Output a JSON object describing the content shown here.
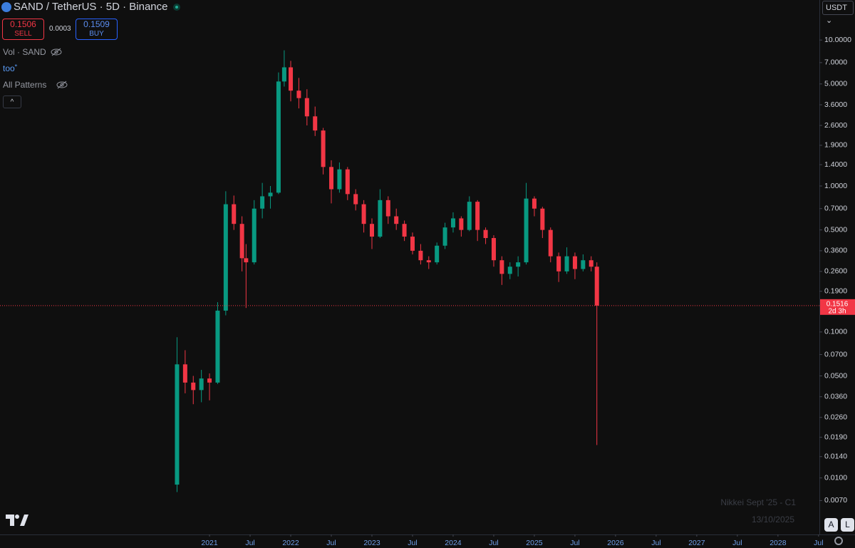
{
  "header": {
    "symbol": "SAND / TetherUS · 5D · Binance",
    "sell_price": 0.1506,
    "sell_label": "SELL",
    "spread": 0.0003,
    "buy_price": 0.1509,
    "buy_label": "BUY"
  },
  "indicators": [
    "Vol · SAND",
    "too˚",
    "All Patterns"
  ],
  "currency": "USDT",
  "countdown": "2d 3h",
  "watermark": {
    "line1": "Nikkei Sept '25 - C1",
    "line2": "13/10/2025"
  },
  "buttons": [
    "A",
    "L"
  ],
  "chart_data": {
    "type": "candlestick",
    "y_scale": "log",
    "up_color": "#089981",
    "down_color": "#f23645",
    "price_line_color": "#f23645",
    "x": [
      2020.6,
      2020.7,
      2020.8,
      2020.9,
      2021.0,
      2021.1,
      2021.2,
      2021.3,
      2021.4,
      2021.45,
      2021.55,
      2021.65,
      2021.75,
      2021.85,
      2021.92,
      2022.0,
      2022.1,
      2022.2,
      2022.3,
      2022.4,
      2022.5,
      2022.6,
      2022.7,
      2022.8,
      2022.9,
      2023.0,
      2023.1,
      2023.2,
      2023.3,
      2023.4,
      2023.5,
      2023.6,
      2023.7,
      2023.8,
      2023.9,
      2024.0,
      2024.1,
      2024.2,
      2024.3,
      2024.4,
      2024.5,
      2024.6,
      2024.7,
      2024.8,
      2024.9,
      2025.0,
      2025.1,
      2025.2,
      2025.3,
      2025.4,
      2025.5,
      2025.6,
      2025.7,
      2025.77
    ],
    "open": [
      0.009,
      0.06,
      0.045,
      0.04,
      0.048,
      0.045,
      0.14,
      0.75,
      0.55,
      0.32,
      0.3,
      0.7,
      0.85,
      0.9,
      5.2,
      6.5,
      4.5,
      4.0,
      3.0,
      2.4,
      1.35,
      0.95,
      1.3,
      0.88,
      0.75,
      0.55,
      0.45,
      0.8,
      0.62,
      0.55,
      0.45,
      0.36,
      0.31,
      0.3,
      0.39,
      0.52,
      0.6,
      0.5,
      0.78,
      0.5,
      0.44,
      0.31,
      0.25,
      0.28,
      0.3,
      0.82,
      0.7,
      0.5,
      0.33,
      0.26,
      0.33,
      0.27,
      0.31,
      0.28
    ],
    "high": [
      0.092,
      0.075,
      0.05,
      0.055,
      0.052,
      0.16,
      0.92,
      0.86,
      0.62,
      0.4,
      0.8,
      1.05,
      1.0,
      6.0,
      8.5,
      7.2,
      5.5,
      4.6,
      3.5,
      2.5,
      1.5,
      1.45,
      1.35,
      0.95,
      0.8,
      0.6,
      0.95,
      0.85,
      0.7,
      0.58,
      0.48,
      0.4,
      0.33,
      0.41,
      0.56,
      0.66,
      0.62,
      0.85,
      0.8,
      0.52,
      0.46,
      0.33,
      0.3,
      0.33,
      1.05,
      0.85,
      0.72,
      0.52,
      0.35,
      0.38,
      0.35,
      0.34,
      0.33,
      0.3
    ],
    "low": [
      0.008,
      0.038,
      0.032,
      0.033,
      0.034,
      0.044,
      0.13,
      0.5,
      0.26,
      0.146,
      0.29,
      0.6,
      0.7,
      0.88,
      4.8,
      3.8,
      3.4,
      2.6,
      2.2,
      1.2,
      0.76,
      0.9,
      0.8,
      0.68,
      0.48,
      0.37,
      0.44,
      0.55,
      0.5,
      0.42,
      0.34,
      0.29,
      0.27,
      0.29,
      0.37,
      0.48,
      0.45,
      0.49,
      0.42,
      0.4,
      0.28,
      0.21,
      0.23,
      0.24,
      0.29,
      0.62,
      0.44,
      0.3,
      0.22,
      0.25,
      0.23,
      0.26,
      0.26,
      0.0168
    ],
    "close": [
      0.06,
      0.045,
      0.04,
      0.048,
      0.045,
      0.14,
      0.75,
      0.55,
      0.32,
      0.3,
      0.7,
      0.85,
      0.9,
      5.2,
      6.5,
      4.5,
      4.0,
      3.0,
      2.4,
      1.35,
      0.95,
      1.3,
      0.88,
      0.75,
      0.55,
      0.45,
      0.8,
      0.62,
      0.55,
      0.45,
      0.36,
      0.31,
      0.3,
      0.39,
      0.52,
      0.6,
      0.5,
      0.78,
      0.5,
      0.44,
      0.31,
      0.25,
      0.28,
      0.3,
      0.82,
      0.7,
      0.5,
      0.33,
      0.26,
      0.33,
      0.27,
      0.31,
      0.28,
      0.1516
    ],
    "xlim": [
      2018.42,
      2028.51
    ],
    "xticks": [
      2021,
      {
        "value": 2021.5,
        "label": "Jul"
      },
      2022,
      {
        "value": 2022.5,
        "label": "Jul"
      },
      2023,
      {
        "value": 2023.5,
        "label": "Jul"
      },
      2024,
      {
        "value": 2024.5,
        "label": "Jul"
      },
      2025,
      {
        "value": 2025.5,
        "label": "Jul"
      },
      2026,
      {
        "value": 2026.5,
        "label": "Jul"
      },
      2027,
      {
        "value": 2027.5,
        "label": "Jul"
      },
      2028,
      {
        "value": 2028.5,
        "label": "Jul"
      }
    ],
    "ylim": [
      0.0041,
      18.8
    ],
    "yticks": [
      {
        "value": 0.007,
        "label": "0.0070"
      },
      {
        "value": 0.01,
        "label": "0.0100"
      },
      {
        "value": 0.014,
        "label": "0.0140"
      },
      {
        "value": 0.019,
        "label": "0.0190"
      },
      {
        "value": 0.026,
        "label": "0.0260"
      },
      {
        "value": 0.036,
        "label": "0.0360"
      },
      {
        "value": 0.05,
        "label": "0.0500"
      },
      {
        "value": 0.07,
        "label": "0.0700"
      },
      {
        "value": 0.1,
        "label": "0.1000"
      },
      {
        "value": 0.19,
        "label": "0.1900"
      },
      {
        "value": 0.26,
        "label": "0.2600"
      },
      {
        "value": 0.36,
        "label": "0.3600"
      },
      {
        "value": 0.5,
        "label": "0.5000"
      },
      {
        "value": 0.7,
        "label": "0.7000"
      },
      {
        "value": 1,
        "label": "1.0000"
      },
      {
        "value": 1.4,
        "label": "1.4000"
      },
      {
        "value": 1.9,
        "label": "1.9000"
      },
      {
        "value": 2.6,
        "label": "2.6000"
      },
      {
        "value": 3.6,
        "label": "3.6000"
      },
      {
        "value": 5,
        "label": "5.0000"
      },
      {
        "value": 7,
        "label": "7.0000"
      },
      {
        "value": 10,
        "label": "10.0000"
      }
    ]
  }
}
